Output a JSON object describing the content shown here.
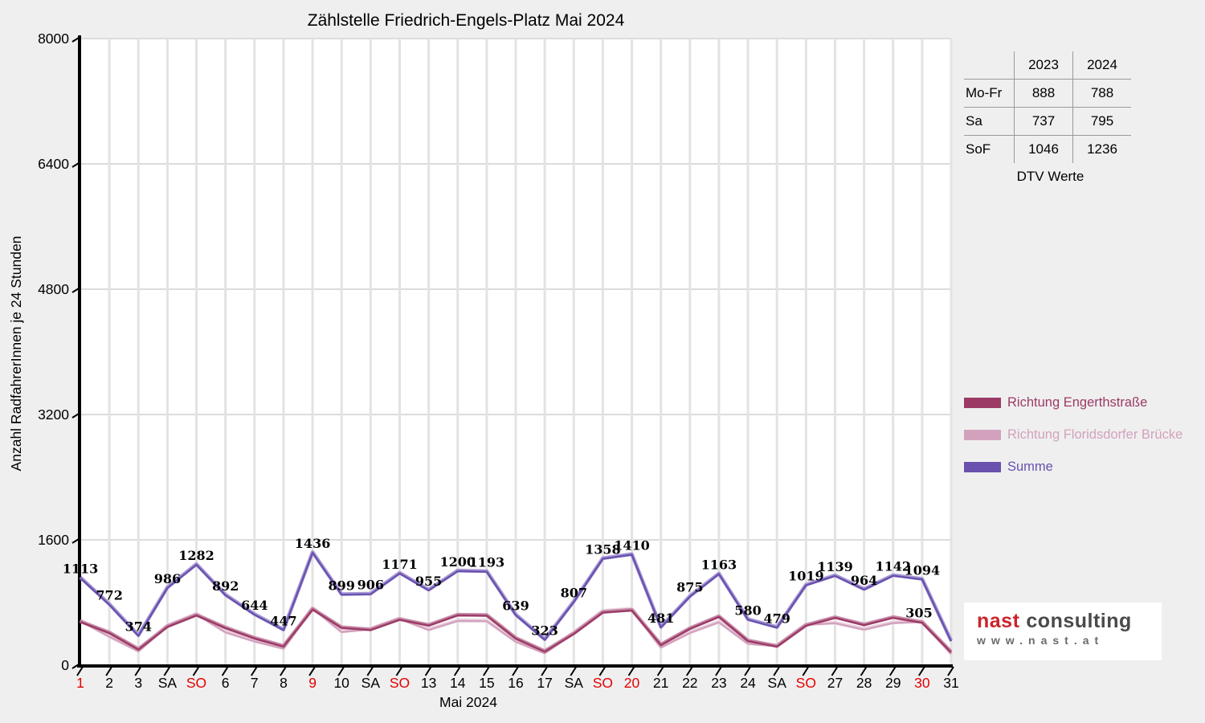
{
  "title": "Zählstelle Friedrich-Engels-Platz Mai 2024",
  "chart_data": {
    "type": "line",
    "title": "Zählstelle Friedrich-Engels-Platz Mai 2024",
    "xlabel": "Mai 2024",
    "ylabel": "Anzahl RadfahrerInnen je 24 Stunden",
    "ylim": [
      0,
      8000
    ],
    "yticks": [
      0,
      1600,
      3200,
      4800,
      6400,
      8000
    ],
    "grid": true,
    "legend_position": "right",
    "categories": [
      "1",
      "2",
      "3",
      "SA",
      "SO",
      "6",
      "7",
      "8",
      "9",
      "10",
      "SA",
      "SO",
      "13",
      "14",
      "15",
      "16",
      "17",
      "SA",
      "SO",
      "20",
      "21",
      "22",
      "23",
      "24",
      "SA",
      "SO",
      "27",
      "28",
      "29",
      "30",
      "31"
    ],
    "red_indices": [
      0,
      4,
      8,
      11,
      18,
      19,
      25,
      29
    ],
    "red_color": "#e60000",
    "series": [
      {
        "name": "Richtung Engerthstraße",
        "color": "#9c3a66",
        "highlight": "#c68ca8",
        "point_labels": false,
        "values": [
          551,
          409,
          198,
          488,
          635,
          473,
          341,
          237,
          711,
          476,
          448,
          580,
          506,
          636,
          632,
          339,
          171,
          399,
          672,
          698,
          255,
          464,
          616,
          307,
          237,
          504,
          604,
          511,
          605,
          542,
          162
        ]
      },
      {
        "name": "Richtung Floridsdorfer Brücke",
        "color": "#d2a2bd",
        "highlight": "#ecd3e1",
        "point_labels": false,
        "values": [
          562,
          363,
          176,
          498,
          647,
          419,
          303,
          210,
          725,
          423,
          458,
          591,
          449,
          564,
          561,
          300,
          152,
          408,
          686,
          712,
          226,
          411,
          547,
          273,
          242,
          515,
          535,
          453,
          537,
          552,
          143
        ]
      },
      {
        "name": "Summe",
        "color": "#6a51ae",
        "highlight": "#a99bd6",
        "point_labels": true,
        "values": [
          1113,
          772,
          374,
          986,
          1282,
          892,
          644,
          447,
          1436,
          899,
          906,
          1171,
          955,
          1200,
          1193,
          639,
          323,
          807,
          1358,
          1410,
          481,
          875,
          1163,
          580,
          479,
          1019,
          1139,
          964,
          1142,
          1094,
          305
        ]
      }
    ]
  },
  "table": {
    "columns": [
      "2023",
      "2024"
    ],
    "rows": [
      {
        "label": "Mo-Fr",
        "y2023": "888",
        "y2024": "788"
      },
      {
        "label": "Sa",
        "y2023": "737",
        "y2024": "795"
      },
      {
        "label": "SoF",
        "y2023": "1046",
        "y2024": "1236"
      }
    ],
    "caption": "DTV Werte"
  },
  "logo": {
    "brand_red": "nast",
    "brand_gray": "consulting",
    "url": "www.nast.at"
  }
}
